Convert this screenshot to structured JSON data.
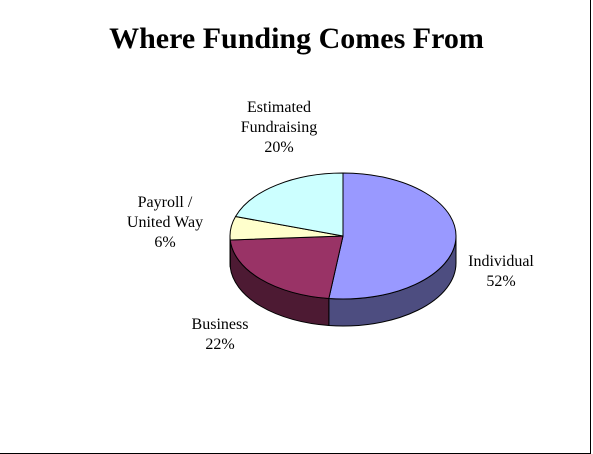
{
  "chart_data": {
    "type": "pie",
    "title": "Where Funding Comes From",
    "slices": [
      {
        "label_lines": [
          "Individual",
          "52%"
        ],
        "value": 52,
        "color": "#9999ff",
        "side_color": "#4d4d80"
      },
      {
        "label_lines": [
          "Business",
          "22%"
        ],
        "value": 22,
        "color": "#993366",
        "side_color": "#4d1a33"
      },
      {
        "label_lines": [
          "Payroll /",
          "United Way",
          "6%"
        ],
        "value": 6,
        "color": "#ffffcc",
        "side_color": "#808066"
      },
      {
        "label_lines": [
          "Estimated",
          "Fundraising",
          "20%"
        ],
        "value": 20,
        "color": "#ccffff",
        "side_color": "#668080"
      }
    ],
    "three_d": true
  }
}
